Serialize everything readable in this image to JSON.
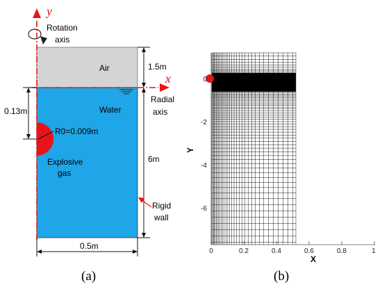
{
  "panel_a": {
    "axis_y": "y",
    "axis_x": "x",
    "rotation_label_1": "Rotation",
    "rotation_label_2": "axis",
    "radial_label_1": "Radial",
    "radial_label_2": "axis",
    "air": "Air",
    "water": "Water",
    "dim_air": "1.5m",
    "dim_water": "6m",
    "dim_depth": "0.13m",
    "dim_width": "0.5m",
    "radius": "R0=0.009m",
    "explosive_1": "Explosive",
    "explosive_2": "gas",
    "wall_1": "Rigid",
    "wall_2": "wall",
    "caption": "(a)",
    "colors": {
      "air": "#d4d4d4",
      "water": "#1ea6e8",
      "red": "#e8141a"
    }
  },
  "panel_b": {
    "xlabel": "X",
    "ylabel": "Y",
    "xticks": [
      "0",
      "0.2",
      "0.4",
      "0.6",
      "0.8",
      "1"
    ],
    "yticks": [
      "0",
      "-2",
      "-4",
      "-6"
    ],
    "caption": "(b)"
  }
}
